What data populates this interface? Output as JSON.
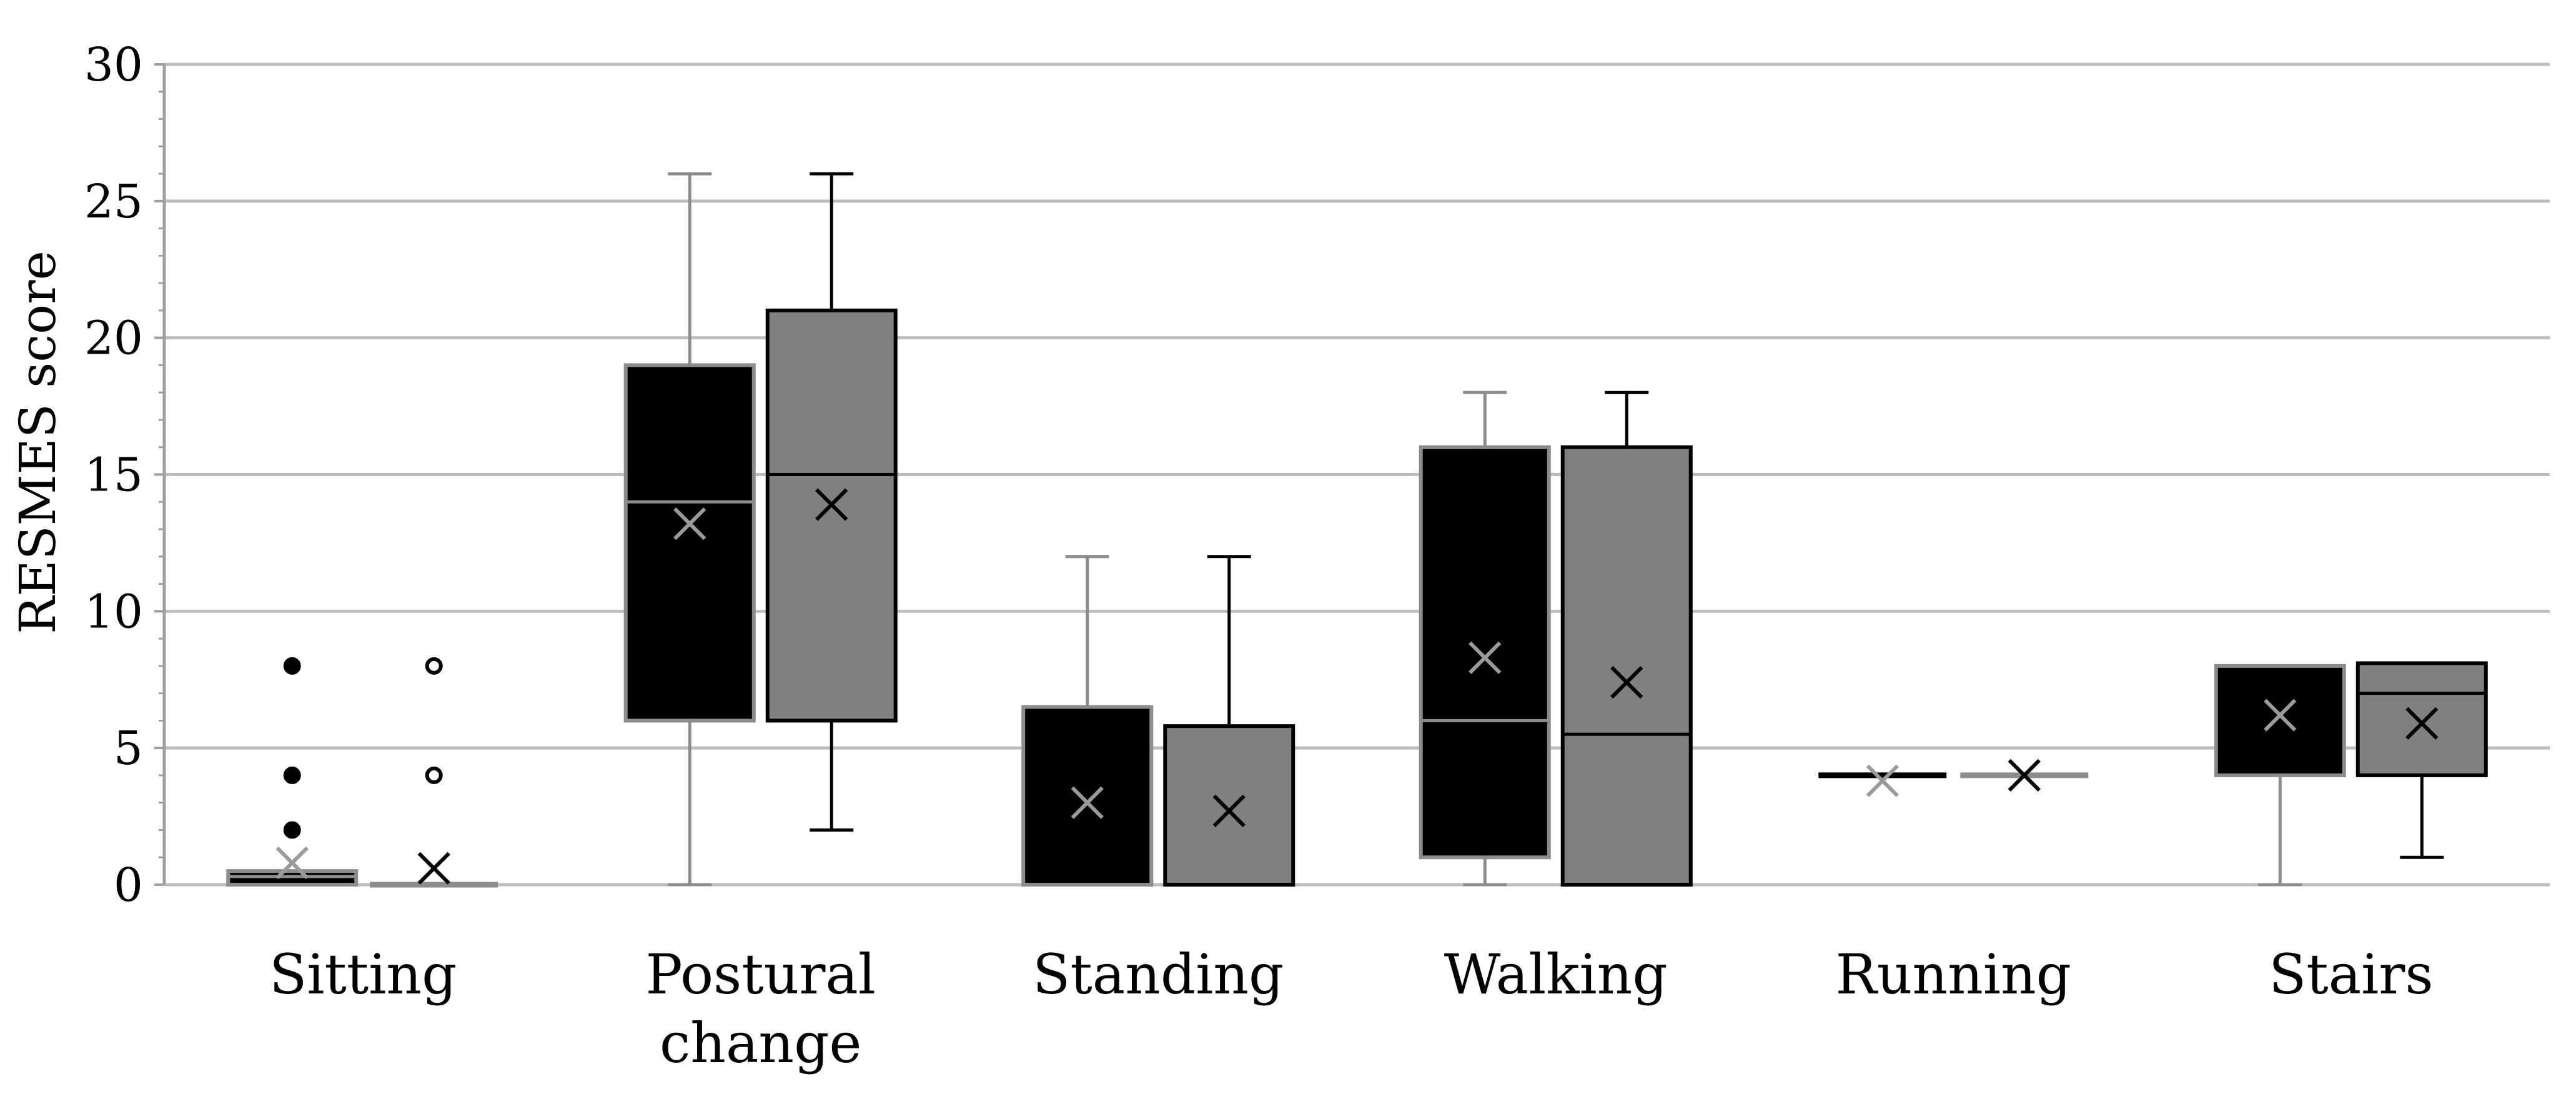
{
  "chart_data": {
    "type": "box",
    "ylabel": "RESMES score",
    "ylim": [
      0,
      30
    ],
    "yticks": [
      0,
      5,
      10,
      15,
      20,
      25,
      30
    ],
    "grid": true,
    "categories": [
      {
        "label": [
          "Sitting"
        ]
      },
      {
        "label": [
          "Postural",
          "change"
        ]
      },
      {
        "label": [
          "Standing"
        ]
      },
      {
        "label": [
          "Walking"
        ]
      },
      {
        "label": [
          "Running"
        ]
      },
      {
        "label": [
          "Stairs"
        ]
      }
    ],
    "series": [
      {
        "fill": "#000000",
        "boxes": [
          {
            "min": 0,
            "q1": 0,
            "median": 0.3,
            "q3": 0.5,
            "max": 0.5,
            "mean": 0.8,
            "outliers": [
              2,
              4,
              8
            ]
          },
          {
            "min": 0,
            "q1": 6,
            "median": 14,
            "q3": 19,
            "max": 26,
            "mean": 13.2,
            "outliers": []
          },
          {
            "min": 0,
            "q1": 0,
            "median": 0,
            "q3": 6.5,
            "max": 12,
            "mean": 3,
            "outliers": []
          },
          {
            "min": 0,
            "q1": 1,
            "median": 6,
            "q3": 16,
            "max": 18,
            "mean": 8.3,
            "outliers": []
          },
          {
            "min": 4,
            "q1": 4,
            "median": 4,
            "q3": 4,
            "max": 4,
            "mean": 3.8,
            "outliers": []
          },
          {
            "min": 0,
            "q1": 4,
            "median": 8,
            "q3": 8,
            "max": 8,
            "mean": 6.2,
            "outliers": []
          }
        ]
      },
      {
        "fill": "#808080",
        "boxes": [
          {
            "min": 0,
            "q1": 0,
            "median": 0,
            "q3": 0,
            "max": 0,
            "mean": 0.6,
            "outliers": [
              4,
              8
            ]
          },
          {
            "min": 2,
            "q1": 6,
            "median": 15,
            "q3": 21,
            "max": 26,
            "mean": 13.9,
            "outliers": []
          },
          {
            "min": 0,
            "q1": 0,
            "median": 0,
            "q3": 5.8,
            "max": 12,
            "mean": 2.7,
            "outliers": []
          },
          {
            "min": 0,
            "q1": 0,
            "median": 5.5,
            "q3": 16,
            "max": 18,
            "mean": 7.4,
            "outliers": []
          },
          {
            "min": 4,
            "q1": 4,
            "median": 4,
            "q3": 4,
            "max": 4,
            "mean": 4,
            "outliers": []
          },
          {
            "min": 1,
            "q1": 4,
            "median": 7,
            "q3": 8.1,
            "max": 8.1,
            "mean": 5.9,
            "outliers": []
          }
        ]
      }
    ]
  }
}
